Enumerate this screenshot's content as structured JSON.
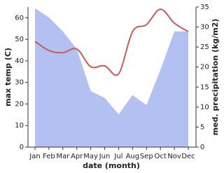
{
  "chart_data": {
    "type": "line",
    "x_label": "date (month)",
    "y_label": "max temp (C)",
    "y2_label": "med. precipitation (kg/m2)",
    "categories": [
      "Jan",
      "Feb",
      "Mar",
      "Apr",
      "May",
      "Jun",
      "Jul",
      "Aug",
      "Sep",
      "Oct",
      "Nov",
      "Dec"
    ],
    "ylim": [
      0,
      65
    ],
    "yticks": [
      0,
      10,
      20,
      30,
      40,
      50,
      60
    ],
    "y2lim": [
      0,
      35
    ],
    "y2ticks": [
      0,
      5,
      10,
      15,
      20,
      25,
      30,
      35
    ],
    "series": [
      {
        "name": "max temp",
        "color": "#c85a5a",
        "values": [
          49,
          44.8,
          43.8,
          45.5,
          37.3,
          37.7,
          34,
          53.6,
          56.8,
          64,
          57.5,
          53.6
        ]
      },
      {
        "name": "med. precipitation",
        "color": "#b3c0f2",
        "axis": "y2",
        "values": [
          34.7,
          32.4,
          28.9,
          24.5,
          14,
          12.3,
          8.2,
          13,
          10.5,
          19.3,
          28.9,
          28.9
        ]
      }
    ]
  }
}
